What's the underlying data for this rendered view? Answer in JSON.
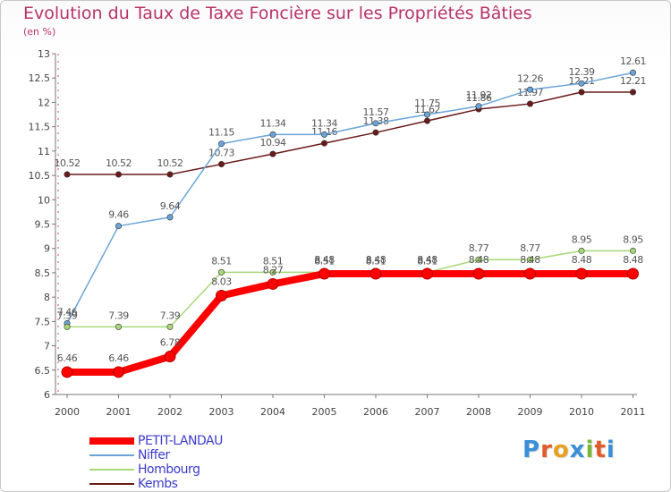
{
  "chart_data": {
    "type": "line",
    "title": "Evolution du Taux de Taxe Foncière sur les Propriétés Bâties",
    "subtitle": "(en %)",
    "xlabel": "",
    "ylabel": "",
    "ylim": [
      6,
      13
    ],
    "yticks": [
      "6",
      "6.5",
      "7",
      "7.5",
      "8",
      "8.5",
      "9",
      "9.5",
      "10",
      "10.5",
      "11",
      "11.5",
      "12",
      "12.5",
      "13"
    ],
    "grid": false,
    "legend_position": "bottom-left",
    "categories": [
      "2000",
      "2001",
      "2002",
      "2003",
      "2004",
      "2005",
      "2006",
      "2007",
      "2008",
      "2009",
      "2010",
      "2011"
    ],
    "series": [
      {
        "name": "Kembs",
        "color": "#6b1a1a",
        "values": [
          10.52,
          10.52,
          10.52,
          10.73,
          10.94,
          11.16,
          11.38,
          11.62,
          11.86,
          11.97,
          12.21,
          12.21
        ],
        "labels": [
          "10.52",
          "10.52",
          "10.52",
          "10.73",
          "10.94",
          "11.16",
          "11.38",
          "11.62",
          "11.86",
          "11.97",
          "12.21",
          "12.21"
        ]
      },
      {
        "name": "Niffer",
        "color": "#6aa4d8",
        "values": [
          7.46,
          9.46,
          9.64,
          11.15,
          11.34,
          11.34,
          11.57,
          11.75,
          11.92,
          12.26,
          12.39,
          12.61
        ],
        "labels": [
          "7.46",
          "9.46",
          "9.64",
          "11.15",
          "11.34",
          "11.34",
          "11.57",
          "11.75",
          "11.92",
          "12.26",
          "12.39",
          "12.61"
        ]
      },
      {
        "name": "Hombourg",
        "color": "#a8d878",
        "values": [
          7.39,
          7.39,
          7.39,
          8.51,
          8.51,
          8.51,
          8.51,
          8.51,
          8.77,
          8.77,
          8.95,
          8.95
        ],
        "labels": [
          "7.39",
          "7.39",
          "7.39",
          "8.51",
          "8.51",
          "8.51",
          "8.51",
          "8.51",
          "8.77",
          "8.77",
          "8.95",
          "8.95"
        ]
      },
      {
        "name": "PETIT-LANDAU",
        "color": "#ff0000",
        "values": [
          6.46,
          6.46,
          6.78,
          8.03,
          8.27,
          8.48,
          8.48,
          8.48,
          8.48,
          8.48,
          8.48,
          8.48
        ],
        "labels": [
          "6.46",
          "6.46",
          "6.78",
          "8.03",
          "8.27",
          "8.48",
          "8.48",
          "8.48",
          "8.48",
          "8.48",
          "8.48",
          "8.48"
        ]
      }
    ],
    "legend": [
      "PETIT-LANDAU",
      "Niffer",
      "Hombourg",
      "Kembs"
    ]
  },
  "logo": {
    "letters": [
      "P",
      "r",
      "o",
      "x",
      "i",
      "t",
      "i"
    ],
    "colors": [
      "#3a8fd8",
      "#e05a2a",
      "#e8a020",
      "#3a8fd8",
      "#7ab83a",
      "#e05a2a",
      "#3a8fd8"
    ]
  }
}
